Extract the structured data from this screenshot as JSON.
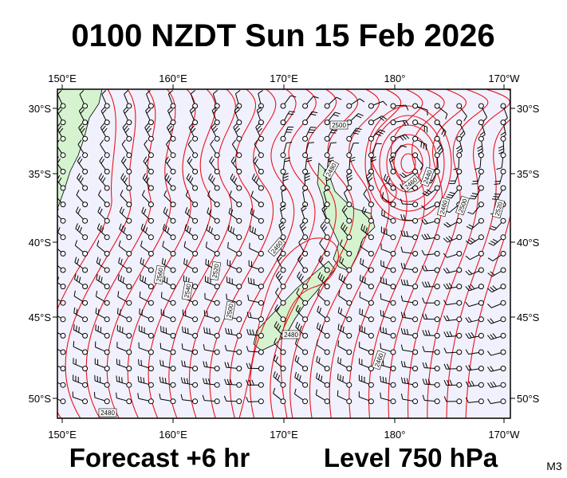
{
  "header": {
    "title": "0100 NZDT Sun 15 Feb 2026"
  },
  "map": {
    "lon_labels": [
      "150°E",
      "160°E",
      "170°E",
      "180°",
      "170°W"
    ],
    "lat_labels": [
      "30°S",
      "35°S",
      "40°S",
      "45°S",
      "50°S"
    ],
    "contour_labels": [
      "2500",
      "2480",
      "2460",
      "2440",
      "2460",
      "2500",
      "2520",
      "2460",
      "2560",
      "2540",
      "2520",
      "2500",
      "2480",
      "2460",
      "2480"
    ]
  },
  "footer": {
    "forecast": "Forecast +6 hr",
    "level": "Level 750 hPa",
    "code": "M3"
  }
}
